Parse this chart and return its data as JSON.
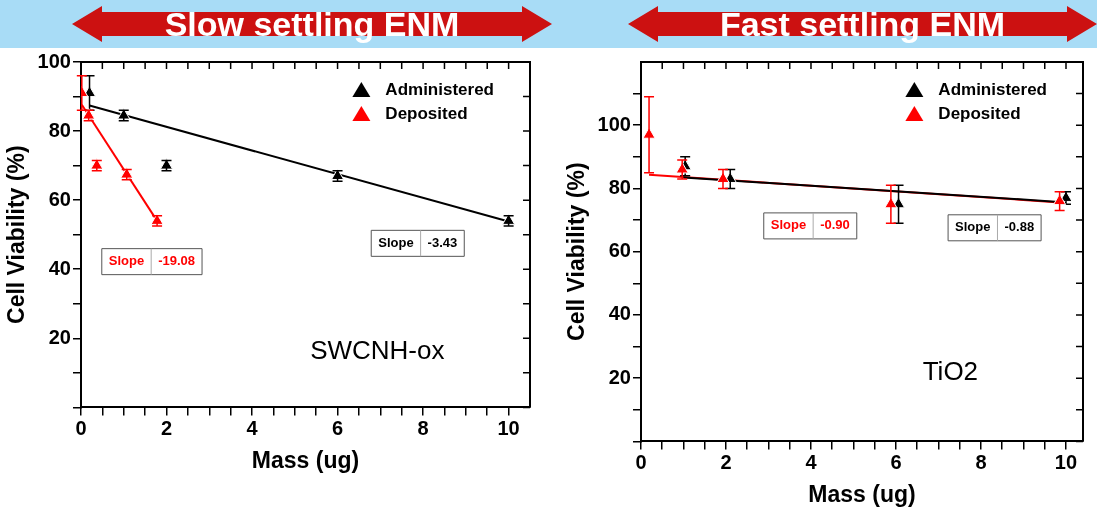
{
  "chart_data": [
    {
      "type": "scatter",
      "title": "Slow settling ENM",
      "xlabel": "Mass (ug)",
      "ylabel": "Cell Viability (%)",
      "legend": "top right",
      "grid": false,
      "xlim": [
        0,
        10.5
      ],
      "xticks": [
        0,
        {
          "value": 0.5,
          "label": null
        },
        {
          "value": 1,
          "label": null
        },
        {
          "value": 1.5,
          "label": null
        },
        2,
        {
          "value": 2.5,
          "label": null
        },
        {
          "value": 3,
          "label": null
        },
        {
          "value": 3.5,
          "label": null
        },
        4,
        {
          "value": 4.5,
          "label": null
        },
        {
          "value": 5,
          "label": null
        },
        {
          "value": 5.5,
          "label": null
        },
        6,
        {
          "value": 6.5,
          "label": null
        },
        {
          "value": 7,
          "label": null
        },
        {
          "value": 7.5,
          "label": null
        },
        8,
        {
          "value": 8.5,
          "label": null
        },
        {
          "value": 9,
          "label": null
        },
        {
          "value": 9.5,
          "label": null
        },
        10
      ],
      "ylim": [
        0,
        100
      ],
      "yticks": [
        {
          "value": 0,
          "label": null
        },
        {
          "value": 10,
          "label": null
        },
        20,
        {
          "value": 30,
          "label": null
        },
        40,
        {
          "value": 50,
          "label": null
        },
        60,
        {
          "value": 70,
          "label": null
        },
        80,
        {
          "value": 90,
          "label": null
        },
        100
      ],
      "series": [
        {
          "name": "Administered",
          "marker": "triangle",
          "color": "#000000",
          "x": [
            0.2,
            1,
            2,
            6,
            10
          ],
          "values": [
            91,
            84.5,
            70,
            67,
            54
          ],
          "errors": [
            5,
            1.5,
            1.5,
            1.5,
            1.5
          ]
        },
        {
          "name": "Deposited",
          "marker": "triangle",
          "color": "#ff0000",
          "x": [
            0.02,
            0.18,
            0.37,
            1.07,
            1.78
          ],
          "values": [
            91,
            84.5,
            70,
            67.4,
            54
          ],
          "errors": [
            5,
            1.5,
            1.5,
            1.5,
            1.5
          ]
        },
        {
          "type": "line",
          "color": "#000000",
          "x": [
            0.2,
            10
          ],
          "values": [
            87.4,
            53.8
          ]
        },
        {
          "type": "line",
          "color": "#ff0000",
          "x": [
            0.02,
            1.78
          ],
          "values": [
            87.6,
            54
          ]
        }
      ],
      "annotations": [
        "Slope -3.43",
        "Slope -19.08",
        "SWCNH-ox"
      ]
    },
    {
      "type": "scatter",
      "title": "Fast settling ENM",
      "xlabel": "Mass (ug)",
      "ylabel": "Cell Viability (%)",
      "legend": "top right",
      "grid": false,
      "xlim": [
        0,
        10.4
      ],
      "xticks": [
        0,
        {
          "value": 0.5,
          "label": null
        },
        {
          "value": 1,
          "label": null
        },
        {
          "value": 1.5,
          "label": null
        },
        2,
        {
          "value": 2.5,
          "label": null
        },
        {
          "value": 3,
          "label": null
        },
        {
          "value": 3.5,
          "label": null
        },
        4,
        {
          "value": 4.5,
          "label": null
        },
        {
          "value": 5,
          "label": null
        },
        {
          "value": 5.5,
          "label": null
        },
        6,
        {
          "value": 6.5,
          "label": null
        },
        {
          "value": 7,
          "label": null
        },
        {
          "value": 7.5,
          "label": null
        },
        8,
        {
          "value": 8.5,
          "label": null
        },
        {
          "value": 9,
          "label": null
        },
        {
          "value": 9.5,
          "label": null
        },
        10
      ],
      "ylim": [
        0,
        120
      ],
      "yticks": [
        {
          "value": 0,
          "label": null
        },
        {
          "value": 10,
          "label": null
        },
        20,
        {
          "value": 30,
          "label": null
        },
        40,
        {
          "value": 50,
          "label": null
        },
        60,
        {
          "value": 70,
          "label": null
        },
        80,
        {
          "value": 90,
          "label": null
        },
        100,
        {
          "value": 110,
          "label": null
        }
      ],
      "series": [
        {
          "name": "Administered",
          "marker": "triangle",
          "color": "#000000",
          "x": [
            1.04,
            2.1,
            6.06,
            10
          ],
          "values": [
            87,
            83,
            75,
            77
          ],
          "errors": [
            3,
            3,
            6,
            2
          ]
        },
        {
          "name": "Deposited",
          "marker": "triangle",
          "color": "#ff0000",
          "x": [
            0.19,
            0.97,
            1.93,
            5.88,
            9.85
          ],
          "values": [
            97,
            86,
            83,
            75,
            76
          ],
          "errors": [
            12,
            3,
            3,
            6,
            3
          ]
        },
        {
          "type": "line",
          "color": "#000000",
          "x": [
            1,
            10
          ],
          "values": [
            83.5,
            75.6
          ]
        },
        {
          "type": "line",
          "color": "#ff0000",
          "x": [
            0.19,
            9.85
          ],
          "values": [
            84.3,
            75.6
          ]
        }
      ],
      "annotations": [
        "Slope -0.88",
        "Slope -0.90",
        "TiO2"
      ]
    }
  ]
}
